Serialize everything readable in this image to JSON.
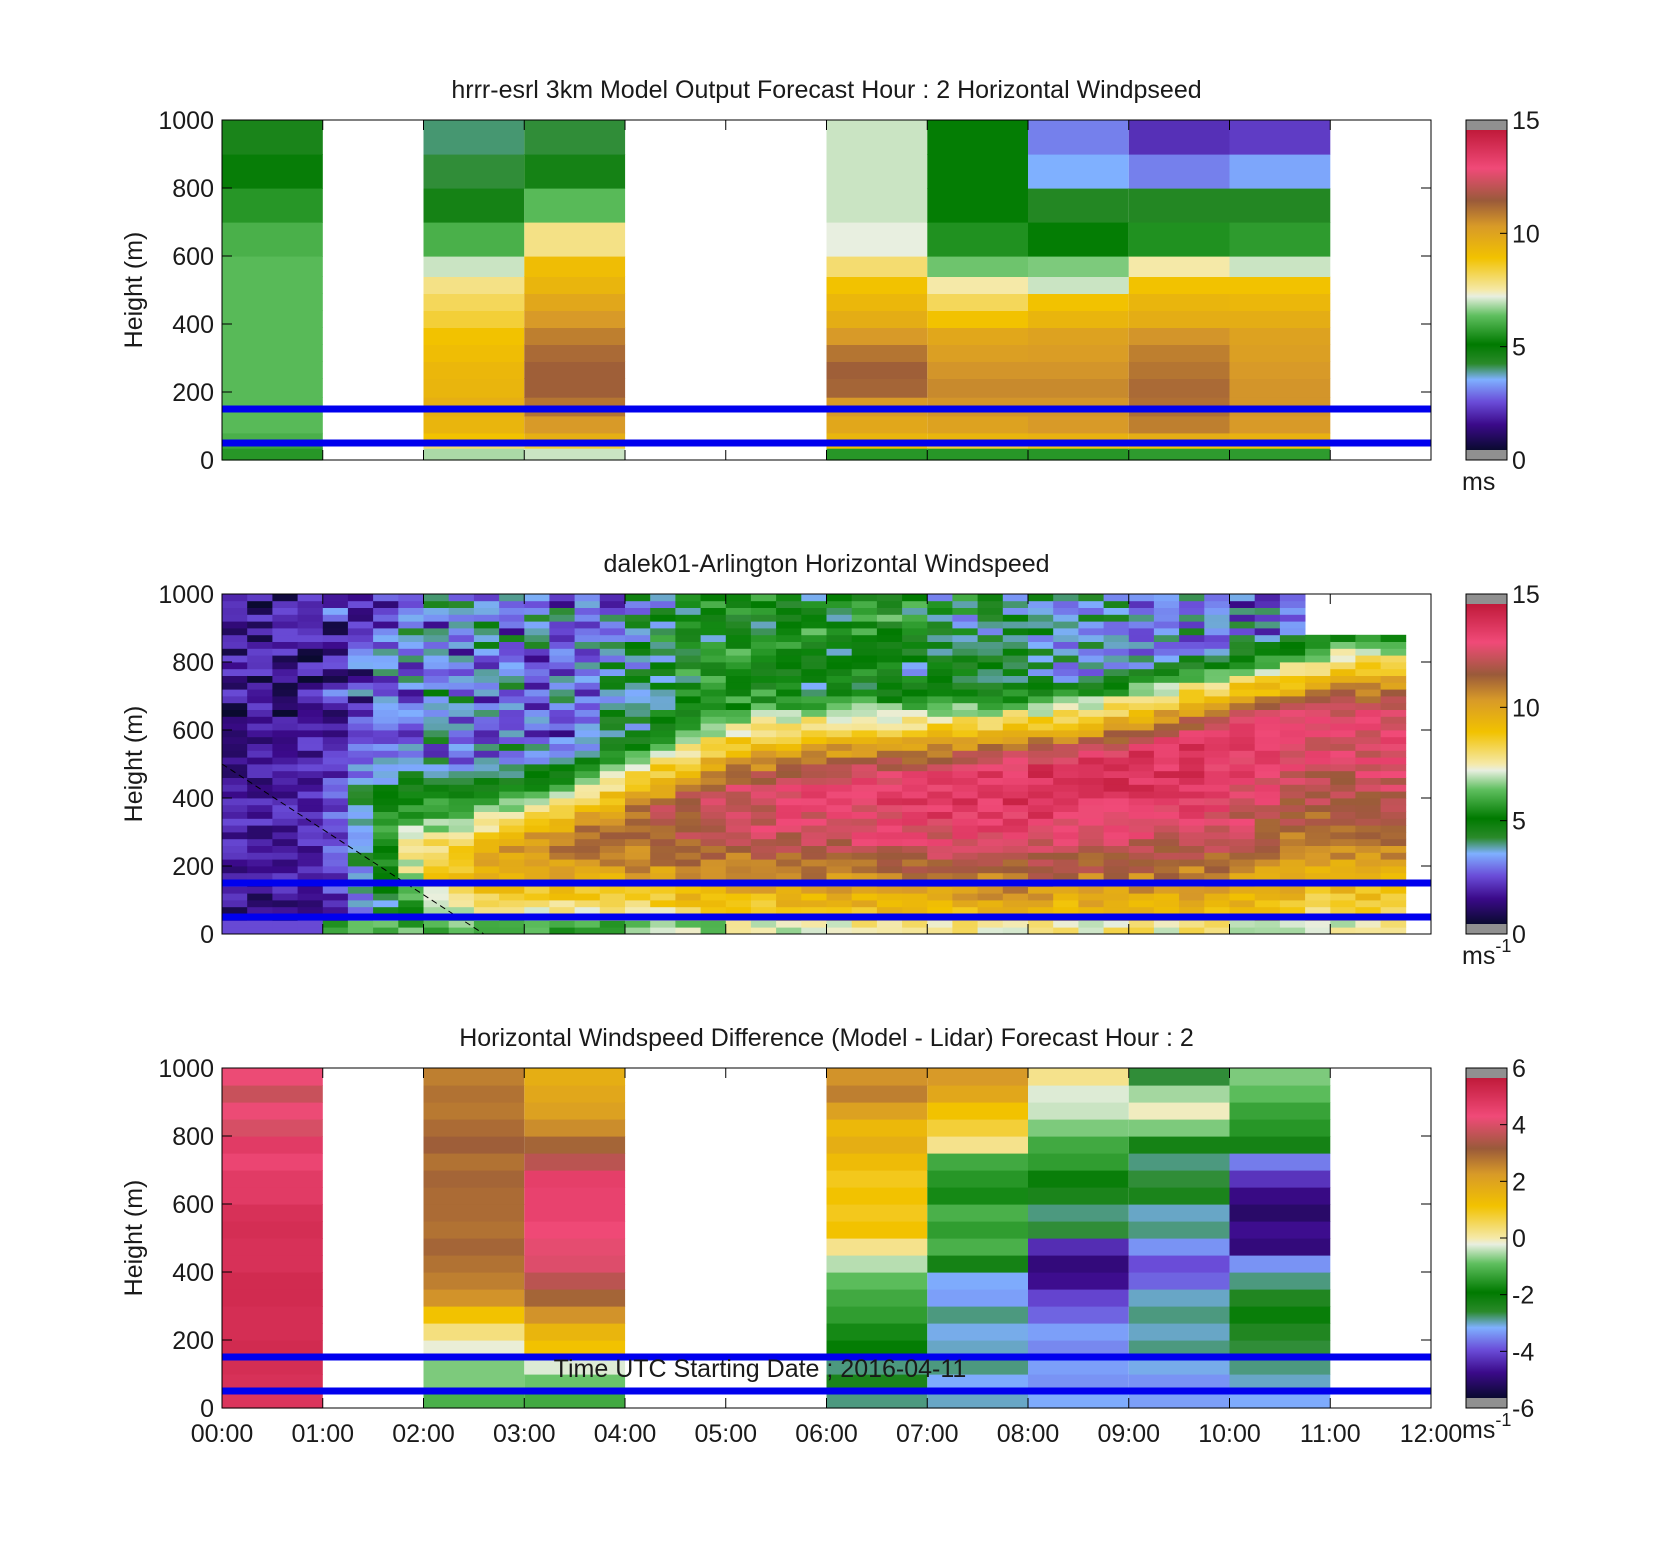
{
  "figure": {
    "xlabel": "Time UTC  Starting Date ; 2016-04-11",
    "x_ticks": [
      "00:00",
      "01:00",
      "02:00",
      "03:00",
      "04:00",
      "05:00",
      "06:00",
      "07:00",
      "08:00",
      "09:00",
      "10:00",
      "11:00",
      "12:00"
    ]
  },
  "chart_data": [
    {
      "type": "heatmap",
      "title": "hrrr-esrl 3km Model Output   Forecast Hour : 2 Horizontal Windpseed",
      "ylabel": "Height (m)",
      "xlim": [
        0,
        12
      ],
      "ylim": [
        0,
        1000
      ],
      "y_ticks": [
        "0",
        "200",
        "400",
        "600",
        "800",
        "1000"
      ],
      "colorbar": {
        "ticks": [
          "0",
          "5",
          "10",
          "15"
        ],
        "range": [
          0,
          15
        ],
        "unit": "ms"
      },
      "reference_lines_m": [
        150,
        50
      ],
      "reference_line_color": "#0000ee",
      "column_edges": [
        0,
        1,
        2,
        3,
        4,
        5,
        6,
        7,
        8,
        9,
        10,
        11,
        12
      ],
      "column_present": [
        true,
        false,
        true,
        true,
        false,
        false,
        true,
        true,
        true,
        true,
        true,
        false
      ],
      "level_edges": [
        0,
        35,
        55,
        80,
        130,
        185,
        240,
        290,
        340,
        390,
        440,
        490,
        540,
        600,
        700,
        800,
        900,
        1000
      ],
      "values": [
        [
          5.5,
          5.8,
          6,
          6.2,
          6.2,
          6.2,
          6.2,
          6.2,
          6.2,
          6.2,
          6.2,
          6.2,
          6.2,
          6.0,
          5.5,
          4.8,
          4.4
        ],
        [
          null,
          null,
          null,
          null,
          null,
          null,
          null,
          null,
          null,
          null,
          null,
          null,
          null,
          null,
          null,
          null,
          null
        ],
        [
          6.8,
          8,
          9,
          9.5,
          9.7,
          9.5,
          9.4,
          9.2,
          9.0,
          8.5,
          8.2,
          7.8,
          7.0,
          6.0,
          4.5,
          4.0,
          3.8
        ],
        [
          7.0,
          8.5,
          9.7,
          10.5,
          11.2,
          11.6,
          11.6,
          11.4,
          11.0,
          10.5,
          10.0,
          9.5,
          9.2,
          7.8,
          6.2,
          4.5,
          4.0
        ],
        [
          null,
          null,
          null,
          null,
          null,
          null,
          null,
          null,
          null,
          null,
          null,
          null,
          null,
          null,
          null,
          null,
          null
        ],
        [
          null,
          null,
          null,
          null,
          null,
          null,
          null,
          null,
          null,
          null,
          null,
          null,
          null,
          null,
          null,
          null,
          null
        ],
        [
          5.5,
          9.0,
          9.5,
          10.0,
          10.5,
          11.5,
          11.6,
          11.2,
          10.5,
          9.8,
          9.4,
          9.0,
          8.0,
          7.2,
          7.0,
          7.0,
          7.0
        ],
        [
          5.5,
          8.5,
          9.5,
          10.2,
          10.6,
          10.8,
          10.6,
          10.3,
          10.0,
          9.0,
          8.2,
          7.5,
          6.4,
          5.4,
          5.0,
          5.0,
          5.0
        ],
        [
          5.5,
          8.8,
          9.6,
          10.5,
          10.6,
          10.8,
          10.6,
          10.4,
          10.2,
          9.5,
          9.0,
          7.0,
          6.5,
          5.0,
          4.2,
          3.3,
          2.8
        ],
        [
          5.6,
          8.9,
          9.8,
          11.0,
          11.3,
          11.4,
          11.2,
          11.0,
          10.6,
          9.8,
          9.5,
          9.0,
          7.5,
          5.4,
          4.2,
          2.8,
          1.8
        ],
        [
          5.6,
          8.9,
          9.6,
          10.5,
          10.6,
          10.6,
          10.5,
          10.3,
          10.2,
          9.8,
          9.4,
          9.0,
          7.0,
          5.6,
          4.2,
          3.2,
          2.0
        ],
        [
          null,
          null,
          null,
          null,
          null,
          null,
          null,
          null,
          null,
          null,
          null,
          null,
          null,
          null,
          null,
          null,
          null
        ]
      ]
    },
    {
      "type": "heatmap",
      "title": "dalek01-Arlington  Horizontal Windspeed",
      "ylabel": "Height (m)",
      "xlim": [
        0,
        12
      ],
      "ylim": [
        0,
        1000
      ],
      "y_ticks": [
        "0",
        "200",
        "400",
        "600",
        "800",
        "1000"
      ],
      "colorbar": {
        "ticks": [
          "0",
          "5",
          "10",
          "15"
        ],
        "range": [
          0,
          15
        ],
        "unit": "ms",
        "unit_superscript": "-1"
      },
      "reference_lines_m": [
        150,
        50
      ],
      "reference_line_color": "#0000ee",
      "data_extent_hours": [
        0,
        11.75
      ],
      "annotation": "dashed line from (0 h, 500 m) to (2.6 h, 0 m)",
      "profile_time_steps_hours": [
        0,
        0.5,
        1,
        1.5,
        2,
        2.5,
        3,
        3.5,
        4,
        4.5,
        5,
        5.5,
        6,
        6.5,
        7,
        7.5,
        8,
        8.5,
        9,
        9.5,
        10,
        10.5,
        11,
        11.75
      ],
      "jet_height_m": [
        380,
        380,
        380,
        340,
        230,
        230,
        260,
        300,
        340,
        380,
        420,
        440,
        450,
        450,
        460,
        470,
        480,
        500,
        530,
        560,
        600,
        630,
        660,
        660
      ],
      "jet_speed_ms": [
        1.6,
        1.6,
        1.8,
        4.5,
        8.5,
        9.5,
        10.5,
        11.0,
        11.5,
        12.0,
        12.5,
        13.0,
        13.2,
        13.5,
        13.8,
        14.0,
        14.0,
        14.0,
        14.0,
        14.0,
        13.8,
        13.2,
        12.8,
        13.2
      ],
      "upper_speed_ms": [
        1.2,
        1.2,
        1.4,
        2.0,
        3.0,
        3.0,
        2.8,
        2.6,
        3.5,
        4.5,
        5.0,
        5.0,
        5.0,
        4.8,
        4.5,
        4.0,
        3.8,
        3.5,
        3.2,
        3.0,
        2.8,
        2.5,
        3.5,
        4.0
      ]
    },
    {
      "type": "heatmap",
      "title": "Horizontal Windspeed Difference (Model - Lidar) Forecast Hour : 2",
      "ylabel": "Height (m)",
      "xlim": [
        0,
        12
      ],
      "ylim": [
        0,
        1000
      ],
      "y_ticks": [
        "0",
        "200",
        "400",
        "600",
        "800",
        "1000"
      ],
      "colorbar": {
        "ticks": [
          "-6",
          "-4",
          "-2",
          "0",
          "2",
          "4",
          "6"
        ],
        "range": [
          -6,
          6
        ],
        "unit": "ms",
        "unit_superscript": "-1"
      },
      "reference_lines_m": [
        150,
        50
      ],
      "reference_line_color": "#0000ee",
      "column_edges": [
        0,
        1,
        2,
        3,
        4,
        5,
        6,
        7,
        8,
        9,
        10,
        11,
        12
      ],
      "column_present": [
        true,
        false,
        true,
        true,
        false,
        false,
        true,
        true,
        true,
        true,
        true,
        false
      ],
      "level_edges": [
        0,
        50,
        100,
        150,
        200,
        250,
        300,
        350,
        400,
        450,
        500,
        550,
        600,
        650,
        700,
        750,
        800,
        850,
        900,
        950,
        1000
      ],
      "values": [
        [
          5.2,
          5.3,
          5.4,
          5.5,
          5.4,
          5.4,
          5.5,
          5.5,
          5.3,
          5.3,
          5.4,
          5.3,
          5.0,
          5.0,
          4.7,
          5.0,
          4.2,
          4.5,
          4.0,
          4.5
        ],
        [
          null,
          null,
          null,
          null,
          null,
          null,
          null,
          null,
          null,
          null,
          null,
          null,
          null,
          null,
          null,
          null,
          null,
          null,
          null,
          null
        ],
        [
          -1.2,
          -0.8,
          -0.8,
          -0.2,
          0.3,
          1.2,
          2.5,
          2.8,
          3.0,
          3.2,
          3.0,
          3.1,
          3.1,
          3.2,
          3.0,
          3.3,
          3.1,
          2.9,
          3.0,
          2.8
        ],
        [
          -1.3,
          -0.9,
          -0.3,
          1.2,
          1.6,
          2.5,
          3.2,
          3.8,
          4.3,
          4.4,
          4.6,
          4.8,
          4.8,
          4.9,
          3.8,
          3.2,
          2.6,
          2.2,
          2.0,
          1.8
        ],
        [
          null,
          null,
          null,
          null,
          null,
          null,
          null,
          null,
          null,
          null,
          null,
          null,
          null,
          null,
          null,
          null,
          null,
          null,
          null,
          null
        ],
        [
          null,
          null,
          null,
          null,
          null,
          null,
          null,
          null,
          null,
          null,
          null,
          null,
          null,
          null,
          null,
          null,
          null,
          null,
          null,
          null
        ],
        [
          -3.0,
          -2.5,
          -3.0,
          -2.0,
          -1.8,
          -1.5,
          -1.3,
          -1.0,
          -0.5,
          0.2,
          1.2,
          1.0,
          1.2,
          1.0,
          1.4,
          1.8,
          1.5,
          2.2,
          2.8,
          2.5
        ],
        [
          -3.2,
          -3.4,
          -3.0,
          -3.2,
          -3.3,
          -3.0,
          -3.5,
          -3.4,
          -2.4,
          -1.2,
          -1.5,
          -1.2,
          -1.8,
          -1.6,
          -1.3,
          0.2,
          0.8,
          1.2,
          2.0,
          2.4
        ],
        [
          -3.4,
          -3.6,
          -3.5,
          -3.7,
          -3.5,
          -4.0,
          -4.3,
          -5.0,
          -5.2,
          -4.6,
          -2.8,
          -3.0,
          -2.5,
          -2.2,
          -1.5,
          -1.3,
          -0.8,
          -0.4,
          -0.3,
          0.2
        ],
        [
          -3.5,
          -3.6,
          -3.3,
          -3.0,
          -3.2,
          -3.0,
          -3.2,
          -4.0,
          -4.2,
          -3.6,
          -3.0,
          -3.2,
          -2.5,
          -2.8,
          -3.0,
          -2.4,
          -0.8,
          -0.1,
          -0.6,
          -2.8
        ],
        [
          -3.4,
          -3.2,
          -3.0,
          -2.8,
          -2.6,
          -2.2,
          -2.6,
          -3.0,
          -3.6,
          -5.2,
          -5.0,
          -5.4,
          -5.1,
          -4.5,
          -3.8,
          -2.4,
          -1.6,
          -1.4,
          -1.0,
          -0.8
        ],
        [
          null,
          null,
          null,
          null,
          null,
          null,
          null,
          null,
          null,
          null,
          null,
          null,
          null,
          null,
          null,
          null,
          null,
          null,
          null,
          null
        ]
      ]
    }
  ]
}
